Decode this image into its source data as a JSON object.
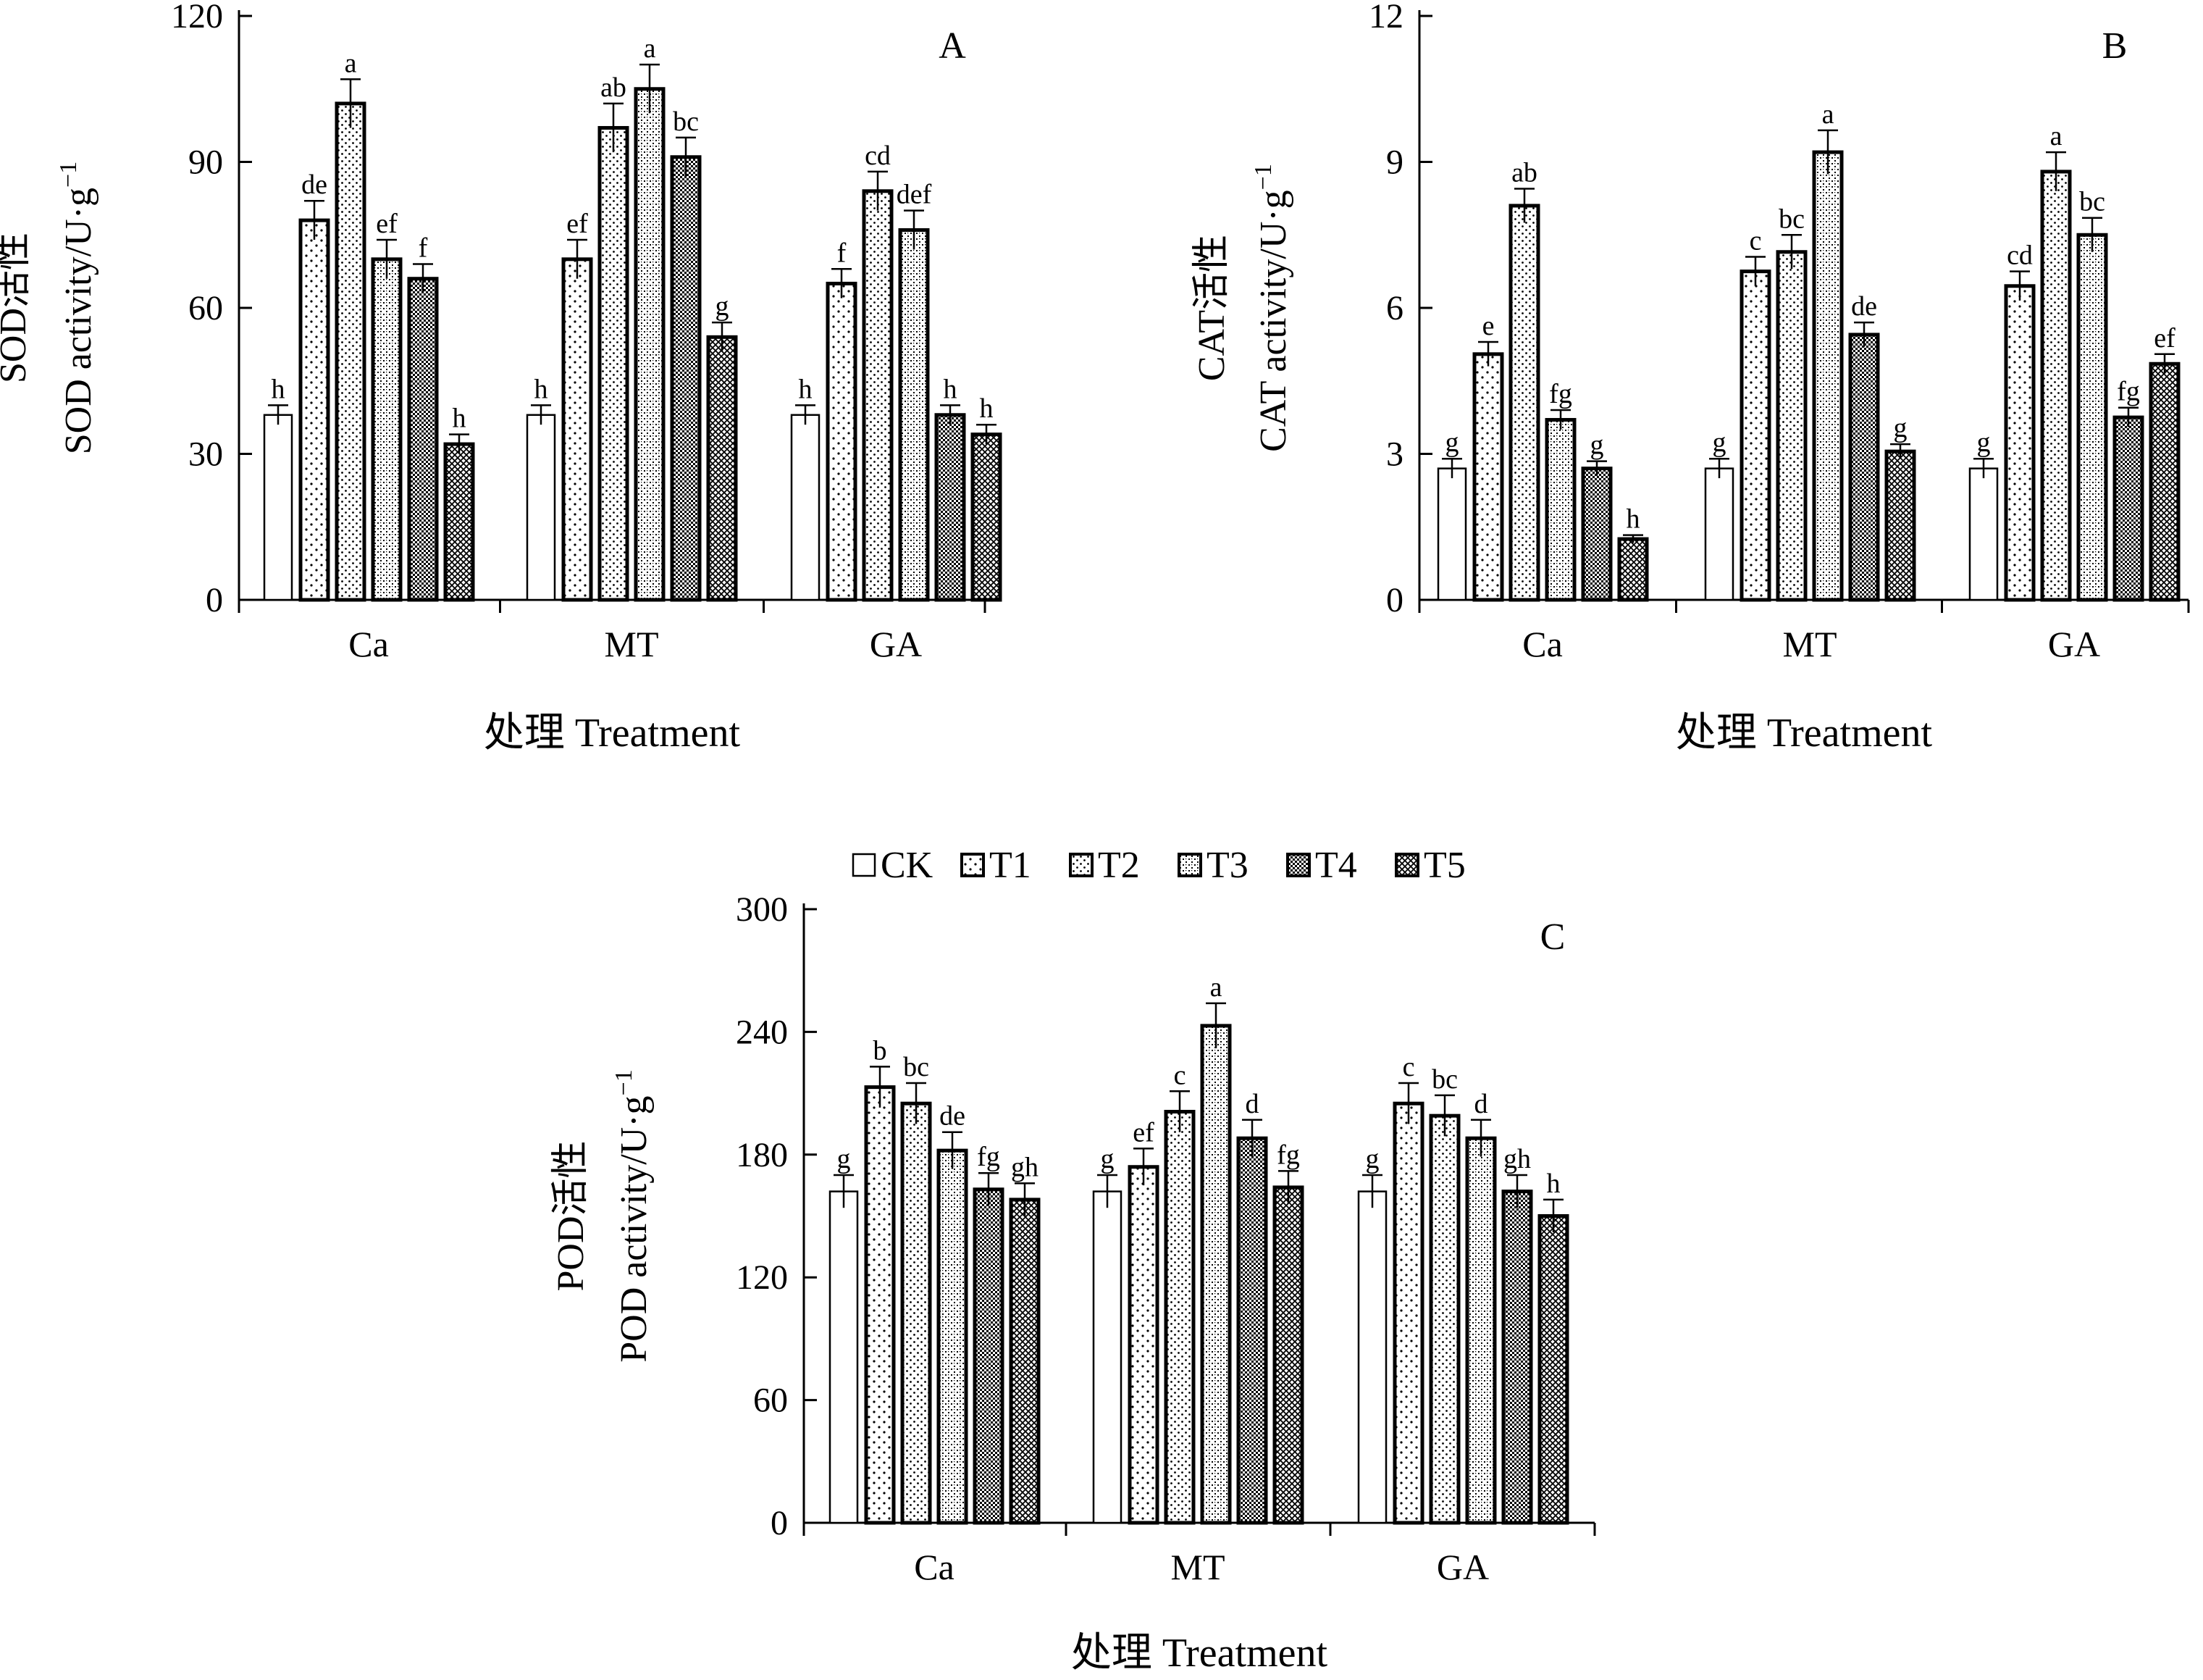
{
  "legend": {
    "entries": [
      "CK",
      "T1",
      "T2",
      "T3",
      "T4",
      "T5"
    ]
  },
  "chart_data": [
    {
      "panel": "A",
      "type": "bar",
      "title": "A",
      "ylabel_cn": "SOD活性",
      "ylabel_en": "SOD activity/U·g",
      "ylabel_sup": "−1",
      "xlabel": "处理 Treatment",
      "categories": [
        "Ca",
        "MT",
        "GA"
      ],
      "ylim": [
        0,
        120
      ],
      "yticks": [
        0,
        30,
        60,
        90,
        120
      ],
      "series": [
        {
          "name": "CK",
          "values": [
            38,
            38,
            38
          ],
          "errors": [
            2,
            2,
            2
          ],
          "letters": [
            "h",
            "h",
            "h"
          ]
        },
        {
          "name": "T1",
          "values": [
            78,
            70,
            65
          ],
          "errors": [
            4,
            4,
            3
          ],
          "letters": [
            "de",
            "ef",
            "f"
          ]
        },
        {
          "name": "T2",
          "values": [
            102,
            97,
            84
          ],
          "errors": [
            5,
            5,
            4
          ],
          "letters": [
            "a",
            "ab",
            "cd"
          ]
        },
        {
          "name": "T3",
          "values": [
            70,
            105,
            76
          ],
          "errors": [
            4,
            5,
            4
          ],
          "letters": [
            "ef",
            "a",
            "def"
          ]
        },
        {
          "name": "T4",
          "values": [
            66,
            91,
            38
          ],
          "errors": [
            3,
            4,
            2
          ],
          "letters": [
            "f",
            "bc",
            "h"
          ]
        },
        {
          "name": "T5",
          "values": [
            32,
            54,
            34
          ],
          "errors": [
            2,
            3,
            2
          ],
          "letters": [
            "h",
            "g",
            "h"
          ]
        }
      ]
    },
    {
      "panel": "B",
      "type": "bar",
      "title": "B",
      "ylabel_cn": "CAT活性",
      "ylabel_en": "CAT activity/U·g",
      "ylabel_sup": "−1",
      "xlabel": "处理 Treatment",
      "categories": [
        "Ca",
        "MT",
        "GA"
      ],
      "ylim": [
        0,
        12
      ],
      "yticks": [
        0,
        3,
        6,
        9,
        12
      ],
      "series": [
        {
          "name": "CK",
          "values": [
            2.7,
            2.7,
            2.7
          ],
          "errors": [
            0.2,
            0.2,
            0.2
          ],
          "letters": [
            "g",
            "g",
            "g"
          ]
        },
        {
          "name": "T1",
          "values": [
            5.05,
            6.75,
            6.45
          ],
          "errors": [
            0.25,
            0.3,
            0.3
          ],
          "letters": [
            "e",
            "c",
            "cd"
          ]
        },
        {
          "name": "T2",
          "values": [
            8.1,
            7.15,
            8.8
          ],
          "errors": [
            0.35,
            0.35,
            0.4
          ],
          "letters": [
            "ab",
            "bc",
            "a"
          ]
        },
        {
          "name": "T3",
          "values": [
            3.7,
            9.2,
            7.5
          ],
          "errors": [
            0.2,
            0.45,
            0.35
          ],
          "letters": [
            "fg",
            "a",
            "bc"
          ]
        },
        {
          "name": "T4",
          "values": [
            2.7,
            5.45,
            3.75
          ],
          "errors": [
            0.15,
            0.25,
            0.2
          ],
          "letters": [
            "g",
            "de",
            "fg"
          ]
        },
        {
          "name": "T5",
          "values": [
            1.25,
            3.05,
            4.85
          ],
          "errors": [
            0.08,
            0.15,
            0.2
          ],
          "letters": [
            "h",
            "g",
            "ef"
          ]
        }
      ]
    },
    {
      "panel": "C",
      "type": "bar",
      "title": "C",
      "ylabel_cn": "POD活性",
      "ylabel_en": "POD activity/U·g",
      "ylabel_sup": "−1",
      "xlabel": "处理 Treatment",
      "categories": [
        "Ca",
        "MT",
        "GA"
      ],
      "ylim": [
        0,
        300
      ],
      "yticks": [
        0,
        60,
        120,
        180,
        240,
        300
      ],
      "series": [
        {
          "name": "CK",
          "values": [
            162,
            162,
            162
          ],
          "errors": [
            8,
            8,
            8
          ],
          "letters": [
            "g",
            "g",
            "g"
          ]
        },
        {
          "name": "T1",
          "values": [
            213,
            174,
            205
          ],
          "errors": [
            10,
            9,
            10
          ],
          "letters": [
            "b",
            "ef",
            "c"
          ]
        },
        {
          "name": "T2",
          "values": [
            205,
            201,
            199
          ],
          "errors": [
            10,
            10,
            10
          ],
          "letters": [
            "bc",
            "c",
            "bc"
          ]
        },
        {
          "name": "T3",
          "values": [
            182,
            243,
            188
          ],
          "errors": [
            9,
            11,
            9
          ],
          "letters": [
            "de",
            "a",
            "d"
          ]
        },
        {
          "name": "T4",
          "values": [
            163,
            188,
            162
          ],
          "errors": [
            8,
            9,
            8
          ],
          "letters": [
            "fg",
            "d",
            "gh"
          ]
        },
        {
          "name": "T5",
          "values": [
            158,
            164,
            150
          ],
          "errors": [
            8,
            8,
            8
          ],
          "letters": [
            "gh",
            "fg",
            "h"
          ]
        }
      ]
    }
  ]
}
